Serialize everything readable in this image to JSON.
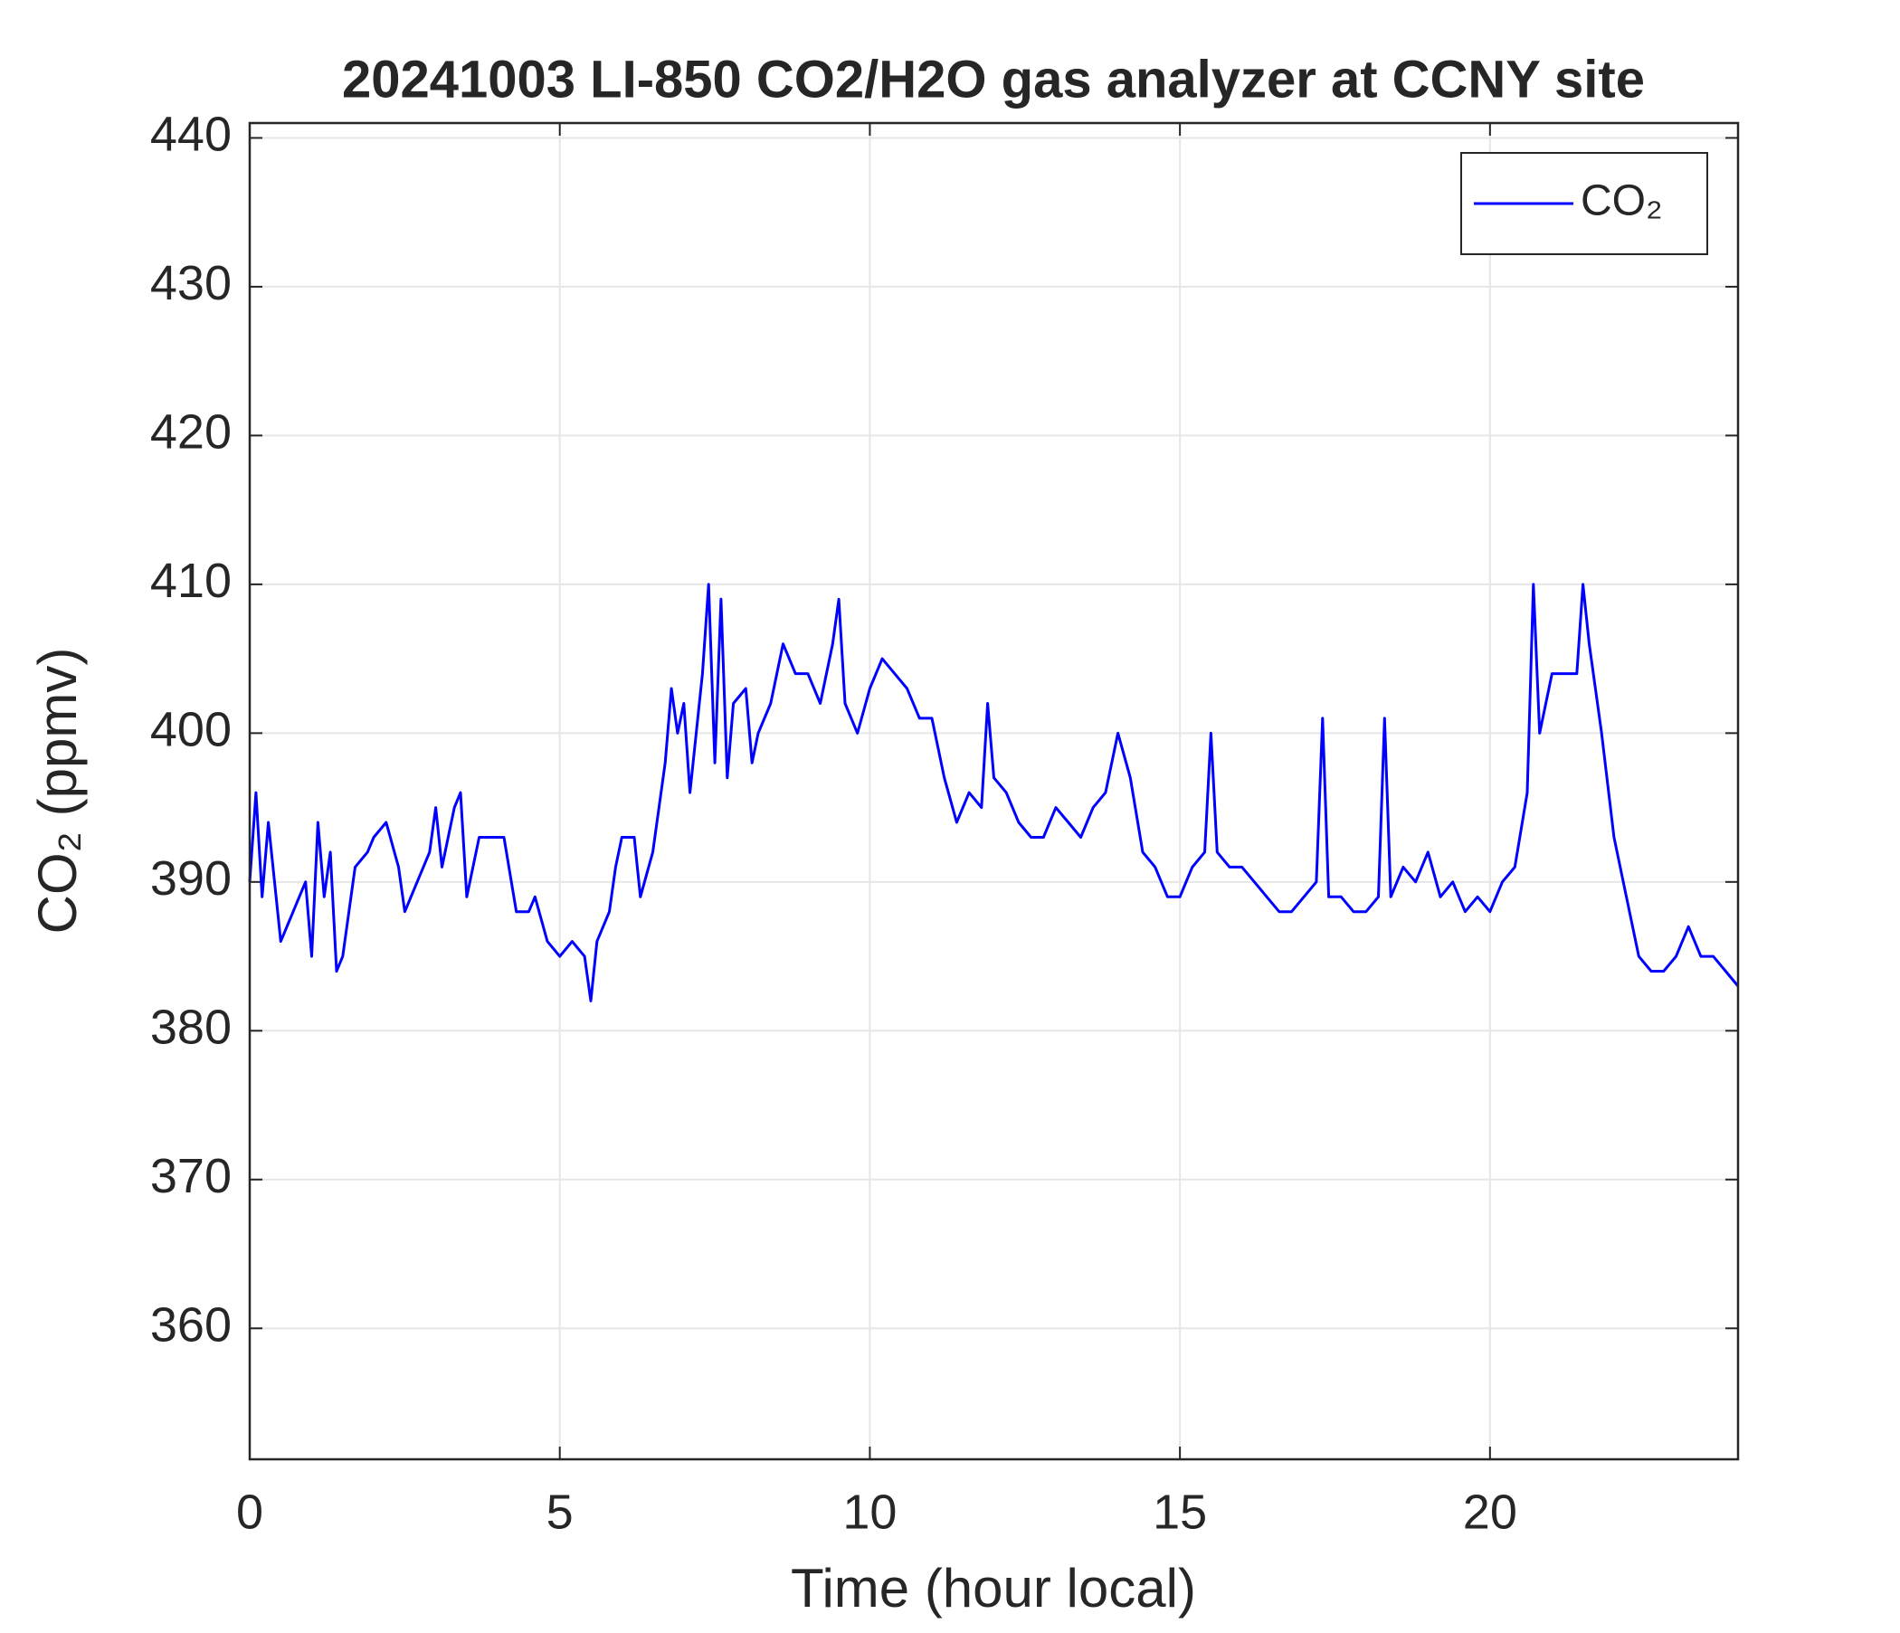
{
  "chart_data": {
    "type": "line",
    "title": "20241003 LI-850 CO2/H2O gas analyzer at CCNY site",
    "xlabel": "Time (hour local)",
    "ylabel": "CO₂ (ppmv)",
    "xlim": [
      0,
      24
    ],
    "xticks": [
      0,
      5,
      10,
      15,
      20
    ],
    "ylim": [
      351.2,
      441
    ],
    "yticks": [
      360,
      370,
      380,
      390,
      400,
      410,
      420,
      430,
      440
    ],
    "grid": true,
    "legend": "upper right",
    "x": [
      0,
      0.1,
      0.2,
      0.3,
      0.5,
      0.7,
      0.9,
      1.0,
      1.1,
      1.2,
      1.3,
      1.4,
      1.5,
      1.7,
      1.9,
      2.0,
      2.2,
      2.4,
      2.5,
      2.7,
      2.9,
      3.0,
      3.1,
      3.3,
      3.4,
      3.5,
      3.7,
      3.9,
      4.1,
      4.3,
      4.5,
      4.6,
      4.8,
      5.0,
      5.2,
      5.4,
      5.5,
      5.6,
      5.8,
      5.9,
      6.0,
      6.2,
      6.3,
      6.5,
      6.7,
      6.8,
      6.9,
      7.0,
      7.1,
      7.2,
      7.3,
      7.4,
      7.5,
      7.6,
      7.7,
      7.8,
      8.0,
      8.1,
      8.2,
      8.4,
      8.6,
      8.8,
      9.0,
      9.2,
      9.4,
      9.5,
      9.6,
      9.8,
      10.0,
      10.2,
      10.4,
      10.6,
      10.8,
      11.0,
      11.2,
      11.4,
      11.6,
      11.8,
      11.9,
      12.0,
      12.2,
      12.4,
      12.6,
      12.8,
      13.0,
      13.2,
      13.4,
      13.6,
      13.8,
      14.0,
      14.2,
      14.4,
      14.6,
      14.8,
      15.0,
      15.2,
      15.4,
      15.5,
      15.6,
      15.8,
      16.0,
      16.2,
      16.4,
      16.6,
      16.8,
      17.0,
      17.2,
      17.3,
      17.4,
      17.6,
      17.8,
      18.0,
      18.2,
      18.3,
      18.4,
      18.6,
      18.8,
      19.0,
      19.2,
      19.4,
      19.6,
      19.8,
      20.0,
      20.2,
      20.4,
      20.6,
      20.7,
      20.8,
      21.0,
      21.2,
      21.4,
      21.5,
      21.6,
      21.8,
      22.0,
      22.2,
      22.4,
      22.6,
      22.8,
      23.0,
      23.2,
      23.4,
      23.6,
      23.8,
      24.0
    ],
    "series": [
      {
        "name": "CO₂",
        "color": "#0000ff",
        "values": [
          390,
          396,
          389,
          394,
          386,
          388,
          390,
          385,
          394,
          389,
          392,
          384,
          385,
          391,
          392,
          393,
          394,
          391,
          388,
          390,
          392,
          395,
          391,
          395,
          396,
          389,
          393,
          393,
          393,
          388,
          388,
          389,
          386,
          385,
          386,
          385,
          382,
          386,
          388,
          391,
          393,
          393,
          389,
          392,
          398,
          403,
          400,
          402,
          396,
          400,
          404,
          410,
          398,
          409,
          397,
          402,
          403,
          398,
          400,
          402,
          406,
          404,
          404,
          402,
          406,
          409,
          402,
          400,
          403,
          405,
          404,
          403,
          401,
          401,
          397,
          394,
          396,
          395,
          402,
          397,
          396,
          394,
          393,
          393,
          395,
          394,
          393,
          395,
          396,
          400,
          397,
          392,
          391,
          389,
          389,
          391,
          392,
          400,
          392,
          391,
          391,
          390,
          389,
          388,
          388,
          389,
          390,
          401,
          389,
          389,
          388,
          388,
          389,
          401,
          389,
          391,
          390,
          392,
          389,
          390,
          388,
          389,
          388,
          390,
          391,
          396,
          410,
          400,
          404,
          404,
          404,
          410,
          406,
          400,
          393,
          389,
          385,
          384,
          384,
          385,
          387,
          385,
          385,
          384,
          383
        ]
      }
    ]
  }
}
